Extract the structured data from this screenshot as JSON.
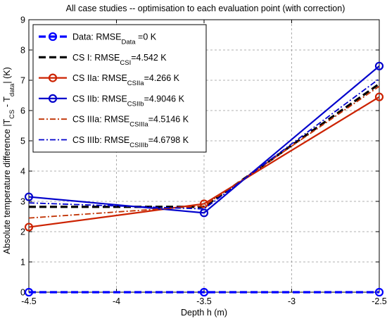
{
  "chart_data": {
    "type": "line",
    "title": "All case studies -- optimisation to each evaluation point (with correction)",
    "xlabel": "Depth h (m)",
    "ylabel": {
      "before": "Absolute temperature difference |T",
      "sub1": "CS",
      "mid": " - T",
      "sub2": "data",
      "after": "| (K)"
    },
    "x": [
      -4.5,
      -3.5,
      -2.5
    ],
    "xlim": [
      -4.5,
      -2.5
    ],
    "ylim": [
      0,
      9
    ],
    "xticks": [
      -4.5,
      -4,
      -3.5,
      -3,
      -2.5
    ],
    "xtick_labels": [
      "-4.5",
      "-4",
      "-3.5",
      "-3",
      "-2.5"
    ],
    "yticks": [
      0,
      1,
      2,
      3,
      4,
      5,
      6,
      7,
      8,
      9
    ],
    "ytick_labels": [
      "0",
      "1",
      "2",
      "3",
      "4",
      "5",
      "6",
      "7",
      "8",
      "9"
    ],
    "grid": true,
    "legend_position": "top-left",
    "series": [
      {
        "legend_main": "Data: RMSE",
        "legend_sub": "Data",
        "legend_tail": " =0 K",
        "color": "#0000ff",
        "line_style": "dashed",
        "marker": "circle",
        "values": [
          0,
          0,
          0
        ]
      },
      {
        "legend_main": "CS I: RMSE",
        "legend_sub": "CSI",
        "legend_tail": "=4.542 K",
        "color": "#000000",
        "line_style": "dashed",
        "marker": "none",
        "values": [
          2.82,
          2.82,
          6.88
        ]
      },
      {
        "legend_main": "CS IIa: RMSE",
        "legend_sub": "CSIIa",
        "legend_tail": "=4.266 K",
        "color": "#cc2200",
        "line_style": "solid",
        "marker": "circle",
        "values": [
          2.15,
          2.92,
          6.45
        ]
      },
      {
        "legend_main": "CS IIb: RMSE",
        "legend_sub": "CSIIb",
        "legend_tail": "=4.9046 K",
        "color": "#0000cc",
        "line_style": "solid",
        "marker": "circle",
        "values": [
          3.15,
          2.62,
          7.47
        ]
      },
      {
        "legend_main": "CS IIIa: RMSE",
        "legend_sub": "CSIIIa",
        "legend_tail": "=4.5146 K",
        "color": "#c03000",
        "line_style": "dashdot",
        "marker": "none",
        "values": [
          2.45,
          2.85,
          6.8
        ]
      },
      {
        "legend_main": "CS IIIb: RMSE",
        "legend_sub": "CSIIIb",
        "legend_tail": "=4.6798 K",
        "color": "#0000cc",
        "line_style": "dashdot",
        "marker": "none",
        "values": [
          2.95,
          2.75,
          7.05
        ]
      }
    ]
  }
}
